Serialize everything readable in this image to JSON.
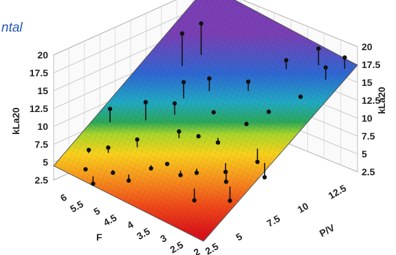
{
  "corner_title": "ntal",
  "chart_data": {
    "type": "surface3d",
    "x_axis": {
      "label": "F",
      "ticks": [
        "6",
        "5.5",
        "5",
        "4.5",
        "4",
        "3.5",
        "3",
        "2.5",
        "2"
      ],
      "range": [
        2,
        6.5
      ]
    },
    "y_axis": {
      "label": "P/V",
      "ticks": [
        "2.5",
        "5",
        "7.5",
        "10",
        "12.5"
      ],
      "range": [
        2.5,
        15
      ]
    },
    "z_axis": {
      "label_left": "kLa20",
      "label_right": "kLa20",
      "ticks_left": [
        "2.5",
        "5",
        "7.5",
        "10",
        "12.5",
        "15",
        "17.5",
        "20"
      ],
      "ticks_right": [
        "2.5",
        "5",
        "7.5",
        "10",
        "12.5",
        "15",
        "17.5",
        "20"
      ],
      "range": [
        2.5,
        20
      ]
    },
    "surface": {
      "description_fn": "linear",
      "z_at_F_max_PV_min": 5,
      "z_at_F_min_PV_max": 10,
      "z_at_F_max_PV_max": 20,
      "z_at_F_min_PV_min": 0
    },
    "points": [
      {
        "F": 5.5,
        "PV": 3,
        "z": 3.5
      },
      {
        "F": 5.8,
        "PV": 3.2,
        "z": 4.8
      },
      {
        "F": 6.0,
        "PV": 4.0,
        "z": 6.5
      },
      {
        "F": 5.6,
        "PV": 4.5,
        "z": 7.2
      },
      {
        "F": 5.2,
        "PV": 3.8,
        "z": 5.0
      },
      {
        "F": 4.8,
        "PV": 4.0,
        "z": 4.5
      },
      {
        "F": 4.5,
        "PV": 5.0,
        "z": 6.0
      },
      {
        "F": 4.2,
        "PV": 5.5,
        "z": 6.8
      },
      {
        "F": 3.8,
        "PV": 5.5,
        "z": 6.0
      },
      {
        "F": 3.5,
        "PV": 6.0,
        "z": 6.5
      },
      {
        "F": 3.2,
        "PV": 5.0,
        "z": 4.0
      },
      {
        "F": 2.8,
        "PV": 6.5,
        "z": 6.2
      },
      {
        "F": 3.0,
        "PV": 7.0,
        "z": 6.8
      },
      {
        "F": 2.5,
        "PV": 6.0,
        "z": 4.5
      },
      {
        "F": 2.2,
        "PV": 8.0,
        "z": 6.8
      },
      {
        "F": 2.6,
        "PV": 8.5,
        "z": 7.8
      },
      {
        "F": 3.6,
        "PV": 8.0,
        "z": 9.0
      },
      {
        "F": 4.0,
        "PV": 7.5,
        "z": 9.5
      },
      {
        "F": 4.4,
        "PV": 7.0,
        "z": 9.8
      },
      {
        "F": 4.9,
        "PV": 8.0,
        "z": 12.0
      },
      {
        "F": 5.4,
        "PV": 7.0,
        "z": 12.0
      },
      {
        "F": 5.0,
        "PV": 9.0,
        "z": 14.0
      },
      {
        "F": 4.6,
        "PV": 10.0,
        "z": 14.5
      },
      {
        "F": 3.8,
        "PV": 11.0,
        "z": 14.8
      },
      {
        "F": 3.0,
        "PV": 10.5,
        "z": 12.5
      },
      {
        "F": 2.6,
        "PV": 12.0,
        "z": 14.2
      },
      {
        "F": 5.6,
        "PV": 10.5,
        "z": 18.5
      },
      {
        "F": 5.4,
        "PV": 11.5,
        "z": 19.5
      },
      {
        "F": 2.4,
        "PV": 13.5,
        "z": 17.5
      },
      {
        "F": 2.2,
        "PV": 14.5,
        "z": 18.5
      },
      {
        "F": 3.4,
        "PV": 13.0,
        "z": 17.0
      },
      {
        "F": 2.8,
        "PV": 14.0,
        "z": 19.0
      },
      {
        "F": 5.1,
        "PV": 5.5,
        "z": 8.5
      },
      {
        "F": 6.1,
        "PV": 6.0,
        "z": 10.5
      },
      {
        "F": 4.1,
        "PV": 9.0,
        "z": 11.5
      },
      {
        "F": 3.3,
        "PV": 9.5,
        "z": 11.0
      }
    ]
  }
}
